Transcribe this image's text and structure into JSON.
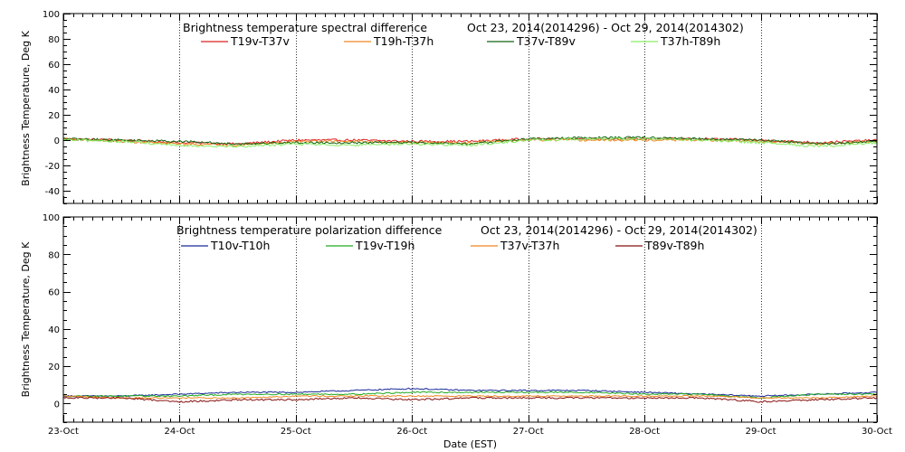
{
  "chart_data": [
    {
      "type": "line",
      "panel": "spectral",
      "title": "Brightness temperature spectral difference",
      "subtitle": "Oct 23, 2014(2014296) - Oct 29, 2014(2014302)",
      "xlabel": "",
      "ylabel": "Brightness Temperature, Deg K",
      "x_range": [
        "2014-10-23",
        "2014-10-30"
      ],
      "ylim": [
        -50,
        100
      ],
      "yticks": [
        "-40",
        "-20",
        "0",
        "20",
        "40",
        "60",
        "80",
        "100"
      ],
      "xticks": [],
      "vertical_grid": "dotted, daily",
      "legend": "top",
      "series": [
        {
          "name": "T19v-T37v",
          "color": "#dd2222",
          "noise": 0.9,
          "points": [
            [
              "2014-10-23",
              1
            ],
            [
              "2014-10-23T12",
              0
            ],
            [
              "2014-10-24",
              -2
            ],
            [
              "2014-10-24T12",
              -3
            ],
            [
              "2014-10-25",
              0
            ],
            [
              "2014-10-25T12",
              0
            ],
            [
              "2014-10-26",
              -1
            ],
            [
              "2014-10-26T12",
              -1
            ],
            [
              "2014-10-27",
              1
            ],
            [
              "2014-10-27T12",
              1
            ],
            [
              "2014-10-28",
              1
            ],
            [
              "2014-10-28T12",
              1
            ],
            [
              "2014-10-29",
              0
            ],
            [
              "2014-10-29T12",
              -2
            ],
            [
              "2014-10-30",
              0
            ]
          ]
        },
        {
          "name": "T19h-T37h",
          "color": "#ee8822",
          "noise": 0.9,
          "points": [
            [
              "2014-10-23",
              1
            ],
            [
              "2014-10-23T12",
              -1
            ],
            [
              "2014-10-24",
              -3
            ],
            [
              "2014-10-24T12",
              -4
            ],
            [
              "2014-10-25",
              -1
            ],
            [
              "2014-10-25T12",
              -1
            ],
            [
              "2014-10-26",
              -2
            ],
            [
              "2014-10-26T12",
              -2
            ],
            [
              "2014-10-27",
              0
            ],
            [
              "2014-10-27T12",
              0
            ],
            [
              "2014-10-28",
              0
            ],
            [
              "2014-10-28T12",
              0
            ],
            [
              "2014-10-29",
              -1
            ],
            [
              "2014-10-29T12",
              -3
            ],
            [
              "2014-10-30",
              -1
            ]
          ]
        },
        {
          "name": "T37v-T89v",
          "color": "#116611",
          "noise": 0.9,
          "points": [
            [
              "2014-10-23",
              1
            ],
            [
              "2014-10-23T12",
              0
            ],
            [
              "2014-10-24",
              -1
            ],
            [
              "2014-10-24T12",
              -3
            ],
            [
              "2014-10-25",
              -2
            ],
            [
              "2014-10-25T12",
              -2
            ],
            [
              "2014-10-26",
              -2
            ],
            [
              "2014-10-26T12",
              -3
            ],
            [
              "2014-10-27",
              1
            ],
            [
              "2014-10-27T12",
              2
            ],
            [
              "2014-10-28",
              2
            ],
            [
              "2014-10-28T12",
              1
            ],
            [
              "2014-10-29",
              0
            ],
            [
              "2014-10-29T12",
              -3
            ],
            [
              "2014-10-30",
              -1
            ]
          ]
        },
        {
          "name": "T37h-T89h",
          "color": "#88ee66",
          "noise": 1.0,
          "points": [
            [
              "2014-10-23",
              0
            ],
            [
              "2014-10-23T12",
              -1
            ],
            [
              "2014-10-24",
              -4
            ],
            [
              "2014-10-24T12",
              -5
            ],
            [
              "2014-10-25",
              -3
            ],
            [
              "2014-10-25T12",
              -4
            ],
            [
              "2014-10-26",
              -3
            ],
            [
              "2014-10-26T12",
              -4
            ],
            [
              "2014-10-27",
              0
            ],
            [
              "2014-10-27T12",
              1
            ],
            [
              "2014-10-28",
              1
            ],
            [
              "2014-10-28T12",
              0
            ],
            [
              "2014-10-29",
              -2
            ],
            [
              "2014-10-29T12",
              -5
            ],
            [
              "2014-10-30",
              -2
            ]
          ]
        }
      ]
    },
    {
      "type": "line",
      "panel": "polarization",
      "title": "Brightness temperature polarization difference",
      "subtitle": "Oct 23, 2014(2014296) - Oct 29, 2014(2014302)",
      "xlabel": "Date (EST)",
      "ylabel": "Brightness Temperature, Deg K",
      "x_range": [
        "2014-10-23",
        "2014-10-30"
      ],
      "ylim": [
        -10,
        100
      ],
      "yticks": [
        "0",
        "20",
        "40",
        "60",
        "80",
        "100"
      ],
      "xticks": [
        "23-Oct",
        "24-Oct",
        "25-Oct",
        "26-Oct",
        "27-Oct",
        "28-Oct",
        "29-Oct",
        "30-Oct"
      ],
      "vertical_grid": "dotted, daily",
      "legend": "top",
      "series": [
        {
          "name": "T10v-T10h",
          "color": "#1a2a99",
          "noise": 0.35,
          "points": [
            [
              "2014-10-23",
              4
            ],
            [
              "2014-10-23T12",
              4
            ],
            [
              "2014-10-24",
              5
            ],
            [
              "2014-10-24T12",
              6
            ],
            [
              "2014-10-25",
              6
            ],
            [
              "2014-10-25T12",
              7
            ],
            [
              "2014-10-26",
              8
            ],
            [
              "2014-10-26T12",
              7
            ],
            [
              "2014-10-27",
              7
            ],
            [
              "2014-10-27T12",
              7
            ],
            [
              "2014-10-28",
              6
            ],
            [
              "2014-10-28T12",
              5
            ],
            [
              "2014-10-29",
              4
            ],
            [
              "2014-10-29T12",
              5
            ],
            [
              "2014-10-30",
              6
            ]
          ]
        },
        {
          "name": "T19v-T19h",
          "color": "#22aa22",
          "noise": 0.35,
          "points": [
            [
              "2014-10-23",
              4
            ],
            [
              "2014-10-23T12",
              4
            ],
            [
              "2014-10-24",
              4
            ],
            [
              "2014-10-24T12",
              5
            ],
            [
              "2014-10-25",
              5
            ],
            [
              "2014-10-25T12",
              5
            ],
            [
              "2014-10-26",
              6
            ],
            [
              "2014-10-26T12",
              6
            ],
            [
              "2014-10-27",
              6
            ],
            [
              "2014-10-27T12",
              6
            ],
            [
              "2014-10-28",
              5
            ],
            [
              "2014-10-28T12",
              5
            ],
            [
              "2014-10-29",
              3
            ],
            [
              "2014-10-29T12",
              5
            ],
            [
              "2014-10-30",
              5
            ]
          ]
        },
        {
          "name": "T37v-T37h",
          "color": "#ee8822",
          "noise": 0.35,
          "points": [
            [
              "2014-10-23",
              4
            ],
            [
              "2014-10-23T12",
              3
            ],
            [
              "2014-10-24",
              3
            ],
            [
              "2014-10-24T12",
              3
            ],
            [
              "2014-10-25",
              4
            ],
            [
              "2014-10-25T12",
              4
            ],
            [
              "2014-10-26",
              4
            ],
            [
              "2014-10-26T12",
              4
            ],
            [
              "2014-10-27",
              4
            ],
            [
              "2014-10-27T12",
              4
            ],
            [
              "2014-10-28",
              4
            ],
            [
              "2014-10-28T12",
              4
            ],
            [
              "2014-10-29",
              3
            ],
            [
              "2014-10-29T12",
              3
            ],
            [
              "2014-10-30",
              4
            ]
          ]
        },
        {
          "name": "T89v-T89h",
          "color": "#881111",
          "noise": 0.45,
          "points": [
            [
              "2014-10-23",
              3
            ],
            [
              "2014-10-23T12",
              3
            ],
            [
              "2014-10-24",
              1
            ],
            [
              "2014-10-24T12",
              2
            ],
            [
              "2014-10-25",
              2
            ],
            [
              "2014-10-25T12",
              3
            ],
            [
              "2014-10-26",
              2
            ],
            [
              "2014-10-26T12",
              3
            ],
            [
              "2014-10-27",
              3
            ],
            [
              "2014-10-27T12",
              3
            ],
            [
              "2014-10-28",
              3
            ],
            [
              "2014-10-28T12",
              3
            ],
            [
              "2014-10-29",
              1
            ],
            [
              "2014-10-29T12",
              2
            ],
            [
              "2014-10-30",
              3
            ]
          ]
        }
      ]
    }
  ]
}
